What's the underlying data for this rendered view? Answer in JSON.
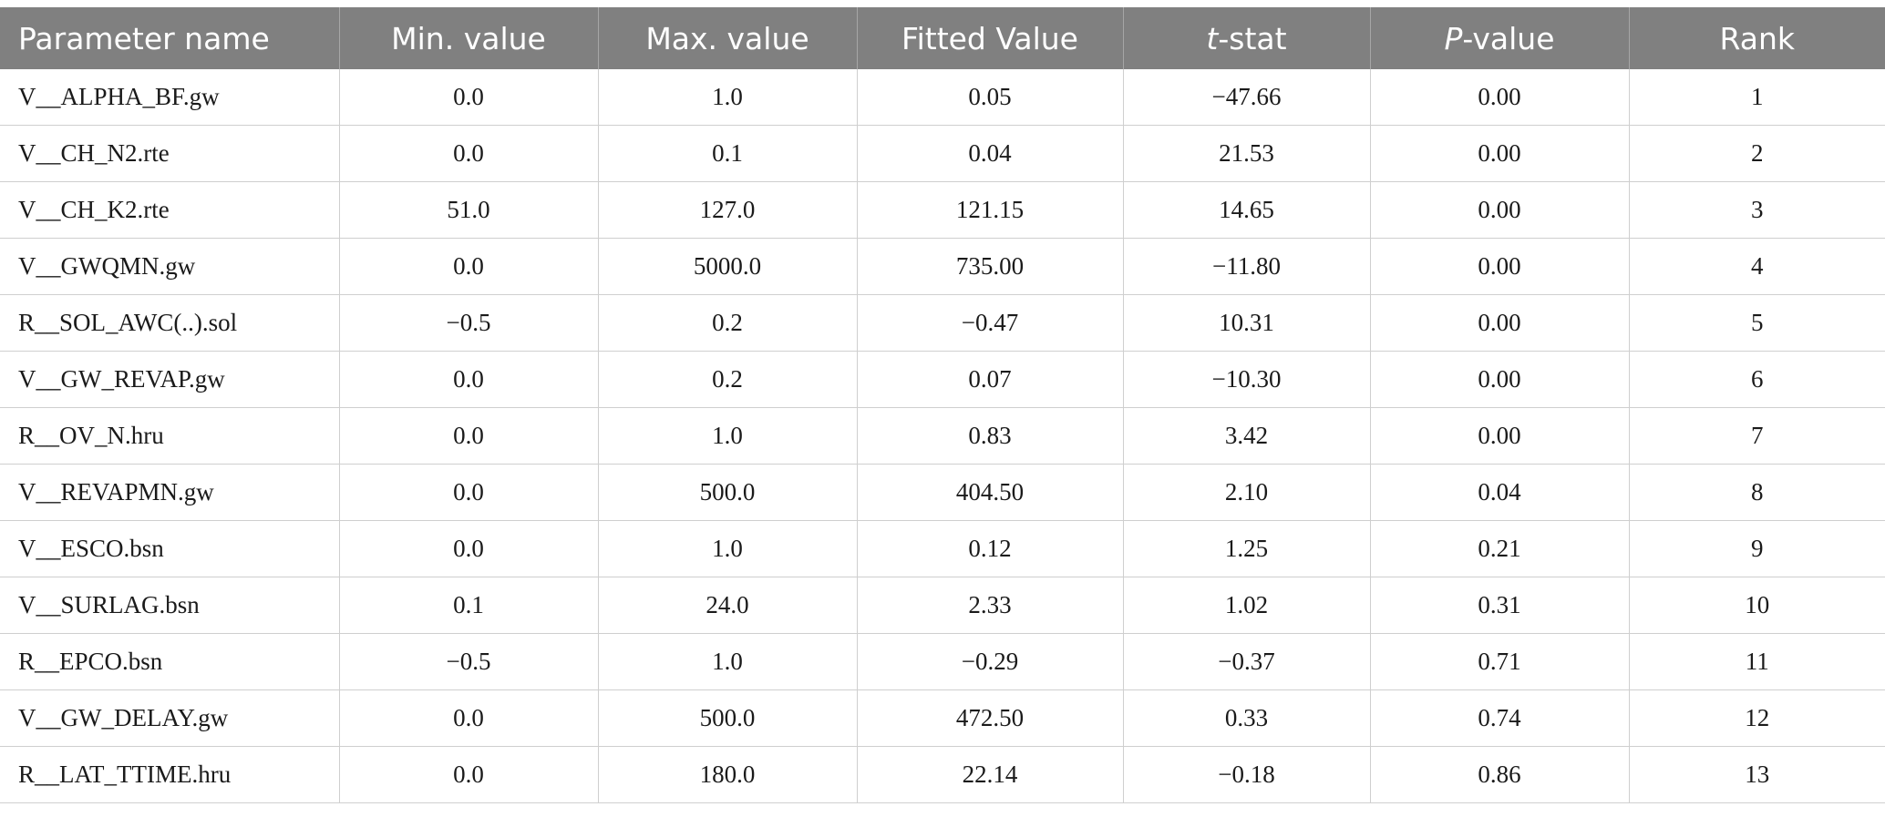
{
  "table": {
    "headers": [
      "Parameter name",
      "Min. value",
      "Max. value",
      "Fitted Value",
      "t-stat",
      "P-value",
      "Rank"
    ],
    "rows": [
      [
        "V__ALPHA_BF.gw",
        "0.0",
        "1.0",
        "0.05",
        "−47.66",
        "0.00",
        "1"
      ],
      [
        "V__CH_N2.rte",
        "0.0",
        "0.1",
        "0.04",
        "21.53",
        "0.00",
        "2"
      ],
      [
        "V__CH_K2.rte",
        "51.0",
        "127.0",
        "121.15",
        "14.65",
        "0.00",
        "3"
      ],
      [
        "V__GWQMN.gw",
        "0.0",
        "5000.0",
        "735.00",
        "−11.80",
        "0.00",
        "4"
      ],
      [
        "R__SOL_AWC(..).sol",
        "−0.5",
        "0.2",
        "−0.47",
        "10.31",
        "0.00",
        "5"
      ],
      [
        "V__GW_REVAP.gw",
        "0.0",
        "0.2",
        "0.07",
        "−10.30",
        "0.00",
        "6"
      ],
      [
        "R__OV_N.hru",
        "0.0",
        "1.0",
        "0.83",
        "3.42",
        "0.00",
        "7"
      ],
      [
        "V__REVAPMN.gw",
        "0.0",
        "500.0",
        "404.50",
        "2.10",
        "0.04",
        "8"
      ],
      [
        "V__ESCO.bsn",
        "0.0",
        "1.0",
        "0.12",
        "1.25",
        "0.21",
        "9"
      ],
      [
        "V__SURLAG.bsn",
        "0.1",
        "24.0",
        "2.33",
        "1.02",
        "0.31",
        "10"
      ],
      [
        "R__EPCO.bsn",
        "−0.5",
        "1.0",
        "−0.29",
        "−0.37",
        "0.71",
        "11"
      ],
      [
        "V__GW_DELAY.gw",
        "0.0",
        "500.0",
        "472.50",
        "0.33",
        "0.74",
        "12"
      ],
      [
        "R__LAT_TTIME.hru",
        "0.0",
        "180.0",
        "22.14",
        "−0.18",
        "0.86",
        "13"
      ]
    ]
  },
  "colors": {
    "header_bg": "#808080",
    "header_text": "#ffffff",
    "grid_line": "#cfcfcf"
  }
}
